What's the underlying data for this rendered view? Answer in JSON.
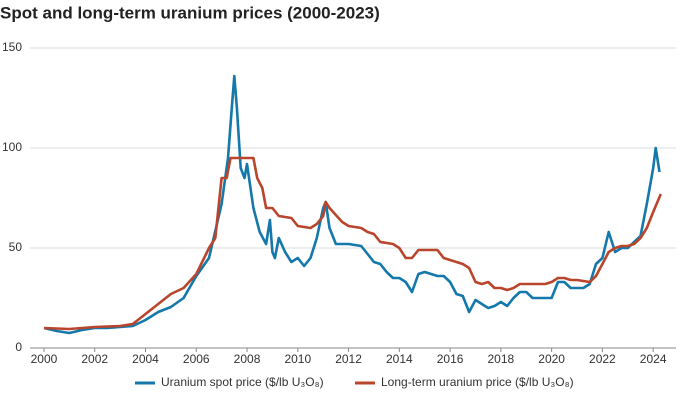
{
  "chart_data": {
    "type": "line",
    "title": "Spot and long-term uranium prices (2000-2023)",
    "xlim": [
      1999.45,
      2024.9
    ],
    "ylim": [
      0,
      150
    ],
    "xticks": [
      2000,
      2002,
      2004,
      2006,
      2008,
      2010,
      2012,
      2014,
      2016,
      2018,
      2020,
      2022,
      2024
    ],
    "yticks": [
      0,
      50,
      100,
      150
    ],
    "grid": true,
    "legend": "bottom",
    "series": [
      {
        "name": "Uranium spot price ($/lb U₃O₈)",
        "color": "#1478aa",
        "x": [
          2000,
          2000.5,
          2001,
          2001.5,
          2002,
          2002.5,
          2003,
          2003.5,
          2004,
          2004.5,
          2005,
          2005.5,
          2006,
          2006.5,
          2007,
          2007.25,
          2007.4,
          2007.5,
          2007.6,
          2007.75,
          2007.9,
          2008,
          2008.25,
          2008.5,
          2008.75,
          2008.9,
          2009,
          2009.1,
          2009.25,
          2009.5,
          2009.75,
          2010,
          2010.25,
          2010.5,
          2010.75,
          2011,
          2011.1,
          2011.25,
          2011.5,
          2011.75,
          2012,
          2012.5,
          2012.75,
          2013,
          2013.25,
          2013.5,
          2013.75,
          2014,
          2014.25,
          2014.5,
          2014.75,
          2015,
          2015.25,
          2015.5,
          2015.75,
          2016,
          2016.25,
          2016.5,
          2016.75,
          2017,
          2017.25,
          2017.5,
          2017.75,
          2018,
          2018.25,
          2018.5,
          2018.75,
          2019,
          2019.25,
          2019.5,
          2019.75,
          2020,
          2020.25,
          2020.5,
          2020.75,
          2021,
          2021.25,
          2021.5,
          2021.75,
          2022,
          2022.25,
          2022.5,
          2022.75,
          2023,
          2023.25,
          2023.5,
          2023.75,
          2024,
          2024.1,
          2024.25
        ],
        "values": [
          10,
          8.5,
          7.5,
          9,
          10,
          10,
          10.5,
          11,
          14,
          18,
          20.5,
          25,
          36,
          45,
          72,
          95,
          120,
          136,
          120,
          90,
          85,
          92,
          70,
          58,
          52,
          64,
          48,
          45,
          55,
          48,
          43,
          45,
          41,
          45,
          55,
          70,
          73,
          60,
          52,
          52,
          52,
          51,
          47,
          43,
          42,
          38,
          35,
          35,
          33,
          28,
          37,
          38,
          37,
          36,
          36,
          33,
          27,
          26,
          18,
          24,
          22,
          20,
          21,
          23,
          21,
          25,
          28,
          28,
          25,
          25,
          25,
          25,
          33,
          33,
          30,
          30,
          30,
          32,
          42,
          45,
          58,
          48,
          50,
          50,
          53,
          56,
          72,
          90,
          100,
          88
        ]
      },
      {
        "name": "Long-term uranium price ($/lb U₃O₈)",
        "color": "#b8452c",
        "x": [
          2000,
          2001,
          2002,
          2003,
          2003.5,
          2004,
          2004.5,
          2005,
          2005.5,
          2006,
          2006.5,
          2006.75,
          2007,
          2007.2,
          2007.35,
          2008,
          2008.25,
          2008.4,
          2008.6,
          2008.75,
          2009,
          2009.25,
          2009.75,
          2010,
          2010.5,
          2010.75,
          2011,
          2011.1,
          2011.25,
          2011.75,
          2012,
          2012.5,
          2012.75,
          2013,
          2013.25,
          2013.75,
          2014,
          2014.25,
          2014.5,
          2014.75,
          2015,
          2015.5,
          2015.75,
          2016,
          2016.5,
          2016.75,
          2017,
          2017.25,
          2017.5,
          2017.75,
          2018,
          2018.25,
          2018.5,
          2018.75,
          2019,
          2019.5,
          2019.75,
          2020,
          2020.25,
          2020.5,
          2020.75,
          2021,
          2021.5,
          2021.75,
          2022,
          2022.25,
          2022.5,
          2022.75,
          2023,
          2023.25,
          2023.5,
          2023.75,
          2024,
          2024.3
        ],
        "values": [
          10,
          9.5,
          10.5,
          11,
          12,
          17,
          22,
          27,
          30,
          37,
          50,
          55,
          85,
          85,
          95,
          95,
          95,
          85,
          80,
          70,
          70,
          66,
          65,
          61,
          60,
          62,
          66,
          73,
          70,
          63,
          61,
          60,
          58,
          57,
          53,
          52,
          50,
          45,
          45,
          49,
          49,
          49,
          45,
          44,
          42,
          40,
          33,
          32,
          33,
          30,
          30,
          29,
          30,
          32,
          32,
          32,
          32,
          33,
          35,
          35,
          34,
          34,
          33,
          36,
          42,
          48,
          50,
          51,
          51,
          52,
          55,
          60,
          68,
          77
        ]
      }
    ]
  }
}
